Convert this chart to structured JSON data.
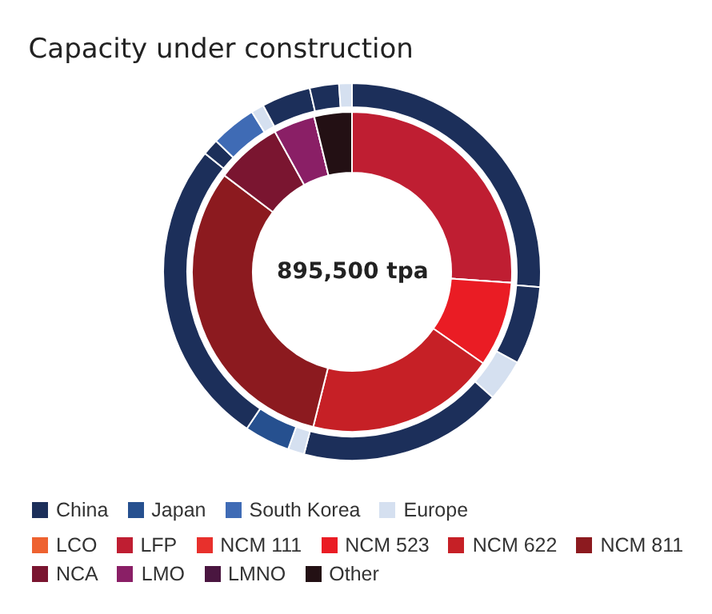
{
  "chart_data": [
    {
      "type": "donut",
      "title": "Capacity under construction",
      "annotations": [
        "895,500 tpa"
      ],
      "legend": "bottom",
      "categories": [
        "LCO",
        "LFP",
        "NCM 111",
        "NCM 523",
        "NCM 622",
        "NCM 811",
        "NCA",
        "LMO",
        "LMNO",
        "Other"
      ],
      "values": [
        0,
        26.1,
        0,
        8.6,
        19.2,
        31.4,
        6.7,
        4.2,
        0,
        3.8
      ],
      "colors": [
        "#ee6230",
        "#bf1e32",
        "#e8302c",
        "#ea1c24",
        "#c62026",
        "#8c1a1f",
        "#7a1530",
        "#8a1f66",
        "#4a1640",
        "#231014"
      ]
    },
    {
      "type": "donut",
      "legend": "bottom",
      "categories": [
        "China",
        null,
        null,
        null,
        null,
        "Japan",
        null,
        null,
        "South Korea",
        "Europe",
        null,
        null,
        null
      ],
      "values": [
        26.3,
        6.7,
        3.6,
        17.5,
        1.4,
        3.9,
        26.4,
        1.4,
        3.9,
        1.1,
        4.2,
        2.5,
        1.1
      ],
      "colors": [
        "#1c2f5a",
        "#1c2f5a",
        "#d5e0f0",
        "#1c2f5a",
        "#d5e0f0",
        "#26508f",
        "#1c2f5a",
        "#1c2f5a",
        "#3f6bb5",
        "#d5e0f0",
        "#1c2f5a",
        "#1c2f5a",
        "#d5e0f0"
      ]
    }
  ]
}
